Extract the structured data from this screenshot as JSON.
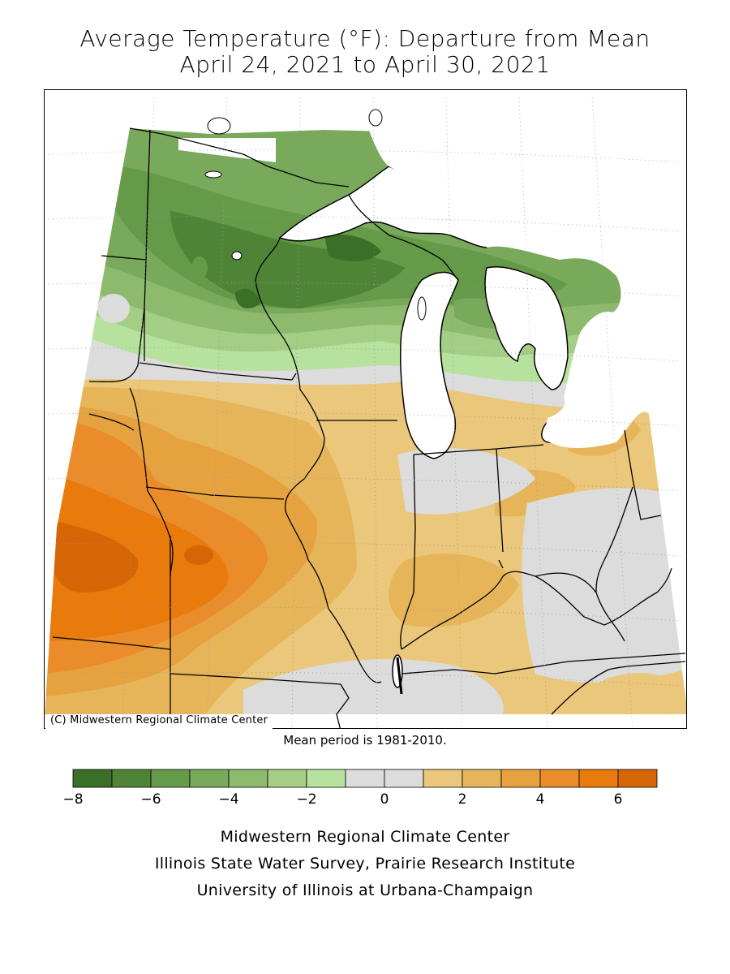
{
  "title_line1": "Average Temperature (°F): Departure from Mean",
  "title_line2": "April 24, 2021 to April 30, 2021",
  "copyright": "(C) Midwestern Regional Climate Center",
  "mean_period": "Mean period is 1981-2010.",
  "legend": {
    "bins": [
      -8,
      -7,
      -6,
      -5,
      -4,
      -3,
      -2,
      -1,
      0,
      1,
      2,
      3,
      4,
      5,
      6,
      7
    ],
    "colors": [
      "#3b6e27",
      "#4f8436",
      "#649a48",
      "#79aa5b",
      "#8dba6d",
      "#a4cd85",
      "#b6e29d",
      "#dcdcdc",
      "#dcdcdc",
      "#eac77a",
      "#e6b55a",
      "#e7a240",
      "#eb8c2a",
      "#e97a0c",
      "#d66605"
    ],
    "tick_labels": [
      {
        "value": -8,
        "label": "−8"
      },
      {
        "value": -6,
        "label": "−6"
      },
      {
        "value": -4,
        "label": "−4"
      },
      {
        "value": -2,
        "label": "−2"
      },
      {
        "value": 0,
        "label": "0"
      },
      {
        "value": 2,
        "label": "2"
      },
      {
        "value": 4,
        "label": "4"
      },
      {
        "value": 6,
        "label": "6"
      }
    ]
  },
  "credits": [
    "Midwestern Regional Climate Center",
    "Illinois State Water Survey, Prairie Research Institute",
    "University of Illinois at Urbana-Champaign"
  ]
}
